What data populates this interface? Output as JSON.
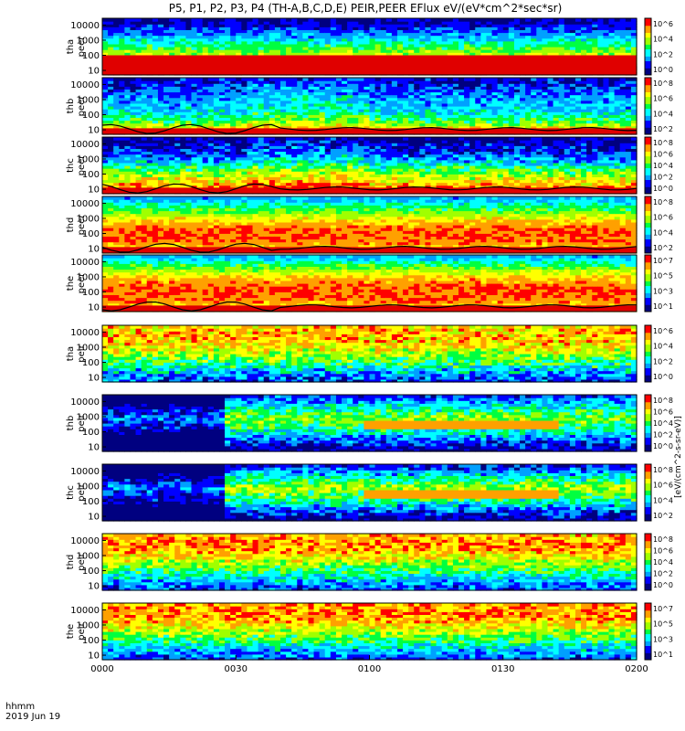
{
  "chart_data": {
    "type": "heatmap",
    "title": "P5, P1, P2, P3, P4 (TH-A,B,C,D,E) PEIR,PEER EFlux eV/(eV*cm^2*sec*sr)",
    "x_axis": {
      "label_lines": [
        "hhmm",
        "2019 Jun 19"
      ],
      "tick_labels": [
        "0000",
        "0030",
        "0100",
        "0130",
        "0200"
      ],
      "range": [
        "00:00",
        "02:00"
      ]
    },
    "y_scale": "log",
    "y_tick_labels": [
      "10",
      "100",
      "1000",
      "10000"
    ],
    "colorscale": [
      "#000080",
      "#0000ff",
      "#00a0ff",
      "#00ffff",
      "#00ff40",
      "#a0ff00",
      "#ffff00",
      "#ffa000",
      "#ff0000",
      "#b00000"
    ],
    "colorbar_unit_label": "[eV/(cm^2-s-sr-eV)]",
    "panels": [
      {
        "probe": "tha",
        "species": "peer",
        "cb_ticks": [
          "10^6",
          "10^4",
          "10^2",
          "10^0"
        ],
        "profile": [
          0.88,
          0.8,
          0.6,
          0.4,
          0.2,
          0.08
        ],
        "noise": 0.1,
        "lower_cutoff_log": 2.0
      },
      {
        "probe": "thb",
        "species": "peer",
        "cb_ticks": [
          "10^8",
          "10^6",
          "10^4",
          "10^2"
        ],
        "profile": [
          0.9,
          0.55,
          0.35,
          0.3,
          0.2,
          0.12
        ],
        "noise": 0.12,
        "trace": true
      },
      {
        "probe": "thc",
        "species": "peer",
        "cb_ticks": [
          "10^8",
          "10^6",
          "10^4",
          "10^2",
          "10^0"
        ],
        "profile": [
          0.92,
          0.75,
          0.55,
          0.3,
          0.15,
          0.05
        ],
        "noise": 0.14,
        "trace": true
      },
      {
        "probe": "thd",
        "species": "peer",
        "cb_ticks": [
          "10^8",
          "10^6",
          "10^4",
          "10^2"
        ],
        "profile": [
          0.7,
          0.88,
          0.9,
          0.75,
          0.5,
          0.3
        ],
        "noise": 0.08,
        "trace": true
      },
      {
        "probe": "the",
        "species": "peer",
        "cb_ticks": [
          "10^7",
          "10^5",
          "10^3",
          "10^1"
        ],
        "profile": [
          0.72,
          0.88,
          0.9,
          0.8,
          0.55,
          0.3
        ],
        "noise": 0.08,
        "trace": true
      },
      {
        "probe": "tha",
        "species": "peir",
        "cb_ticks": [
          "10^6",
          "10^4",
          "10^2",
          "10^0"
        ],
        "profile": [
          0.2,
          0.35,
          0.55,
          0.7,
          0.8,
          0.78
        ],
        "noise": 0.16
      },
      {
        "probe": "thb",
        "species": "peir",
        "cb_ticks": [
          "10^8",
          "10^6",
          "10^4",
          "10^2",
          "10^0"
        ],
        "profile": [
          0.05,
          0.25,
          0.45,
          0.6,
          0.4,
          0.2
        ],
        "noise": 0.14
      },
      {
        "probe": "thc",
        "species": "peir",
        "cb_ticks": [
          "10^8",
          "10^6",
          "10^4",
          "10^2"
        ],
        "profile": [
          0.05,
          0.25,
          0.5,
          0.62,
          0.4,
          0.15
        ],
        "noise": 0.14
      },
      {
        "probe": "thd",
        "species": "peir",
        "cb_ticks": [
          "10^8",
          "10^6",
          "10^4",
          "10^2",
          "10^0"
        ],
        "profile": [
          0.2,
          0.35,
          0.55,
          0.72,
          0.85,
          0.8
        ],
        "noise": 0.14
      },
      {
        "probe": "the",
        "species": "peir",
        "cb_ticks": [
          "10^7",
          "10^5",
          "10^3",
          "10^1"
        ],
        "profile": [
          0.2,
          0.35,
          0.55,
          0.72,
          0.85,
          0.82
        ],
        "noise": 0.14
      }
    ]
  }
}
